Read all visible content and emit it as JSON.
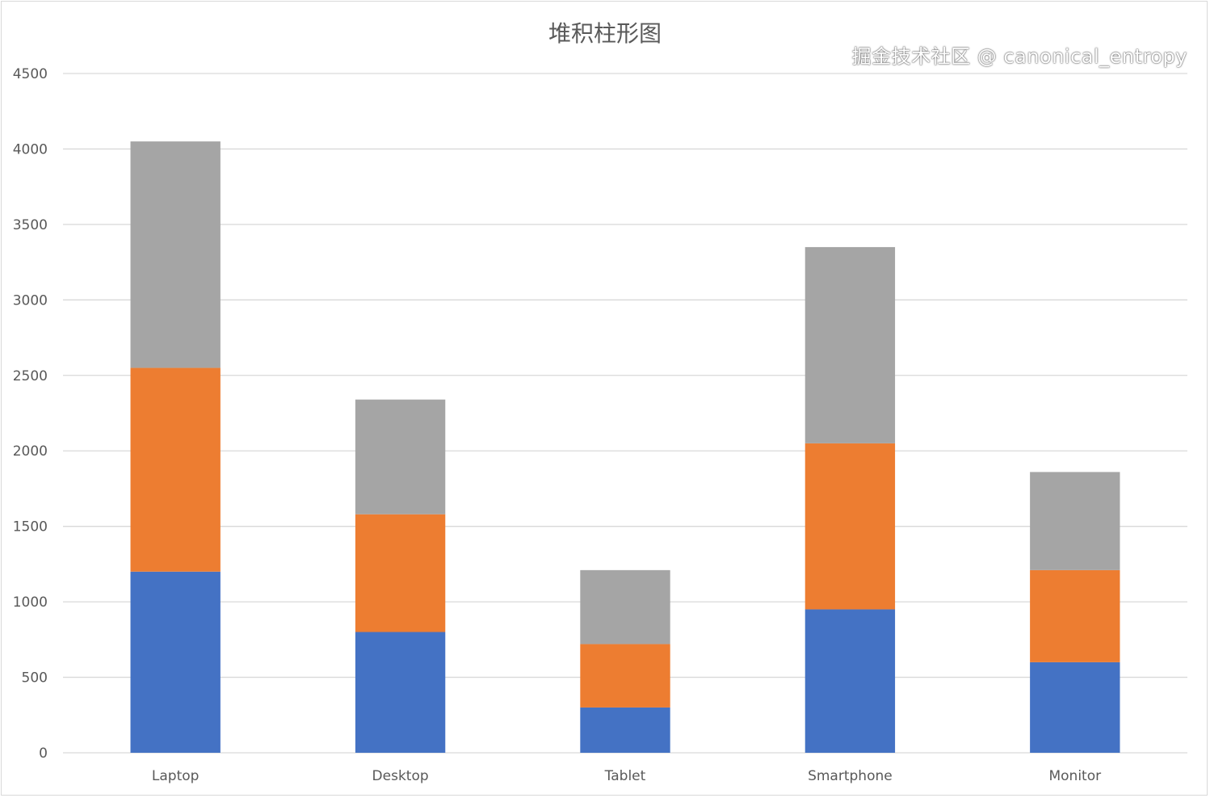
{
  "chart_data": {
    "type": "bar",
    "stacked": true,
    "title": "堆积柱形图",
    "categories": [
      "Laptop",
      "Desktop",
      "Tablet",
      "Smartphone",
      "Monitor"
    ],
    "series": [
      {
        "values": [
          1200,
          800,
          300,
          950,
          600
        ],
        "color": "#4472C4"
      },
      {
        "values": [
          1350,
          780,
          420,
          1100,
          610
        ],
        "color": "#ED7D31"
      },
      {
        "values": [
          1500,
          760,
          490,
          1300,
          650
        ],
        "color": "#A5A5A5"
      }
    ],
    "ylim": [
      0,
      4500
    ],
    "yticks": [
      0,
      500,
      1000,
      1500,
      2000,
      2500,
      3000,
      3500,
      4000,
      4500
    ],
    "grid": true,
    "legend": "none"
  },
  "watermark": "掘金技术社区 @ canonical_entropy"
}
